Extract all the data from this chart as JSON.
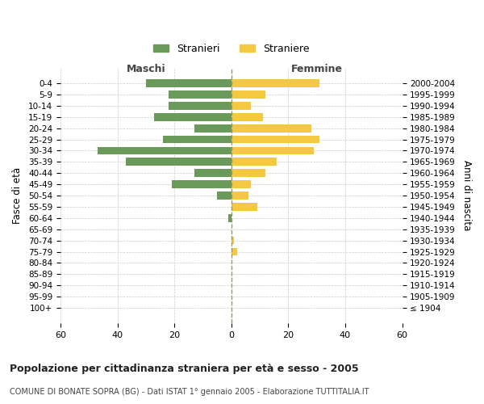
{
  "age_groups": [
    "100+",
    "95-99",
    "90-94",
    "85-89",
    "80-84",
    "75-79",
    "70-74",
    "65-69",
    "60-64",
    "55-59",
    "50-54",
    "45-49",
    "40-44",
    "35-39",
    "30-34",
    "25-29",
    "20-24",
    "15-19",
    "10-14",
    "5-9",
    "0-4"
  ],
  "birth_years": [
    "≤ 1904",
    "1905-1909",
    "1910-1914",
    "1915-1919",
    "1920-1924",
    "1925-1929",
    "1930-1934",
    "1935-1939",
    "1940-1944",
    "1945-1949",
    "1950-1954",
    "1955-1959",
    "1960-1964",
    "1965-1969",
    "1970-1974",
    "1975-1979",
    "1980-1984",
    "1985-1989",
    "1990-1994",
    "1995-1999",
    "2000-2004"
  ],
  "maschi": [
    0,
    0,
    0,
    0,
    0,
    0,
    0,
    0,
    1,
    0,
    5,
    21,
    13,
    37,
    47,
    24,
    13,
    27,
    22,
    22,
    30
  ],
  "femmine": [
    0,
    0,
    0,
    0,
    0,
    2,
    1,
    0,
    0,
    9,
    6,
    7,
    12,
    16,
    29,
    31,
    28,
    11,
    7,
    12,
    31
  ],
  "male_color": "#6a9a5a",
  "female_color": "#f5c842",
  "background_color": "#ffffff",
  "grid_color": "#cccccc",
  "xlim": 60,
  "title": "Popolazione per cittadinanza straniera per età e sesso - 2005",
  "subtitle": "COMUNE DI BONATE SOPRA (BG) - Dati ISTAT 1° gennaio 2005 - Elaborazione TUTTITALIA.IT",
  "ylabel_left": "Fasce di età",
  "ylabel_right": "Anni di nascita",
  "legend_male": "Stranieri",
  "legend_female": "Straniere",
  "maschi_header": "Maschi",
  "femmine_header": "Femmine"
}
